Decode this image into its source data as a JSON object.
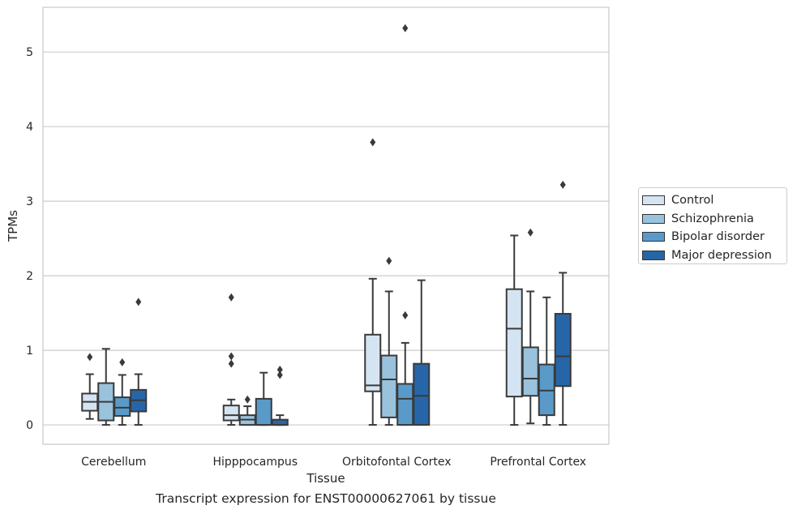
{
  "caption": "Transcript expression for ENST00000627061 by tissue",
  "chart_data": {
    "type": "box",
    "xlabel": "Tissue",
    "ylabel": "TPMs",
    "ylim": [
      -0.26,
      5.6
    ],
    "yticks": [
      0,
      1,
      2,
      3,
      4,
      5
    ],
    "grid": "horizontal",
    "legend_position": "right",
    "categories": [
      "Cerebellum",
      "Hipppocampus",
      "Orbitofontal Cortex",
      "Prefrontal Cortex"
    ],
    "series": [
      {
        "name": "Control",
        "color": "#d5e4f2",
        "boxes": [
          {
            "whisker_low": 0.08,
            "q1": 0.19,
            "median": 0.31,
            "q3": 0.42,
            "whisker_high": 0.68,
            "outliers": [
              0.91
            ]
          },
          {
            "whisker_low": 0.0,
            "q1": 0.06,
            "median": 0.13,
            "q3": 0.26,
            "whisker_high": 0.34,
            "outliers": [
              0.82,
              0.92,
              1.71
            ]
          },
          {
            "whisker_low": 0.0,
            "q1": 0.45,
            "median": 0.53,
            "q3": 1.21,
            "whisker_high": 1.96,
            "outliers": [
              3.79
            ]
          },
          {
            "whisker_low": 0.0,
            "q1": 0.38,
            "median": 1.29,
            "q3": 1.82,
            "whisker_high": 2.54,
            "outliers": []
          }
        ]
      },
      {
        "name": "Schizophrenia",
        "color": "#99c2dd",
        "boxes": [
          {
            "whisker_low": 0.0,
            "q1": 0.06,
            "median": 0.31,
            "q3": 0.56,
            "whisker_high": 1.02,
            "outliers": []
          },
          {
            "whisker_low": 0.0,
            "q1": 0.0,
            "median": 0.07,
            "q3": 0.13,
            "whisker_high": 0.25,
            "outliers": [
              0.34
            ]
          },
          {
            "whisker_low": 0.0,
            "q1": 0.1,
            "median": 0.61,
            "q3": 0.93,
            "whisker_high": 1.79,
            "outliers": [
              2.2
            ]
          },
          {
            "whisker_low": 0.02,
            "q1": 0.39,
            "median": 0.62,
            "q3": 1.04,
            "whisker_high": 1.79,
            "outliers": [
              2.58
            ]
          }
        ]
      },
      {
        "name": "Bipolar disorder",
        "color": "#5a9ac8",
        "boxes": [
          {
            "whisker_low": 0.0,
            "q1": 0.12,
            "median": 0.23,
            "q3": 0.37,
            "whisker_high": 0.67,
            "outliers": [
              0.84
            ]
          },
          {
            "whisker_low": 0.0,
            "q1": 0.0,
            "median": 0.0,
            "q3": 0.35,
            "whisker_high": 0.7,
            "outliers": []
          },
          {
            "whisker_low": 0.0,
            "q1": 0.0,
            "median": 0.35,
            "q3": 0.55,
            "whisker_high": 1.1,
            "outliers": [
              1.47,
              5.32
            ]
          },
          {
            "whisker_low": 0.0,
            "q1": 0.13,
            "median": 0.46,
            "q3": 0.81,
            "whisker_high": 1.71,
            "outliers": []
          }
        ]
      },
      {
        "name": "Major depression",
        "color": "#2666a8",
        "boxes": [
          {
            "whisker_low": 0.0,
            "q1": 0.18,
            "median": 0.33,
            "q3": 0.47,
            "whisker_high": 0.68,
            "outliers": [
              1.65
            ]
          },
          {
            "whisker_low": 0.0,
            "q1": 0.0,
            "median": 0.0,
            "q3": 0.07,
            "whisker_high": 0.13,
            "outliers": [
              0.67,
              0.74
            ]
          },
          {
            "whisker_low": 0.0,
            "q1": 0.0,
            "median": 0.39,
            "q3": 0.82,
            "whisker_high": 1.94,
            "outliers": []
          },
          {
            "whisker_low": 0.0,
            "q1": 0.52,
            "median": 0.92,
            "q3": 1.49,
            "whisker_high": 2.04,
            "outliers": [
              3.22
            ]
          }
        ]
      }
    ]
  }
}
